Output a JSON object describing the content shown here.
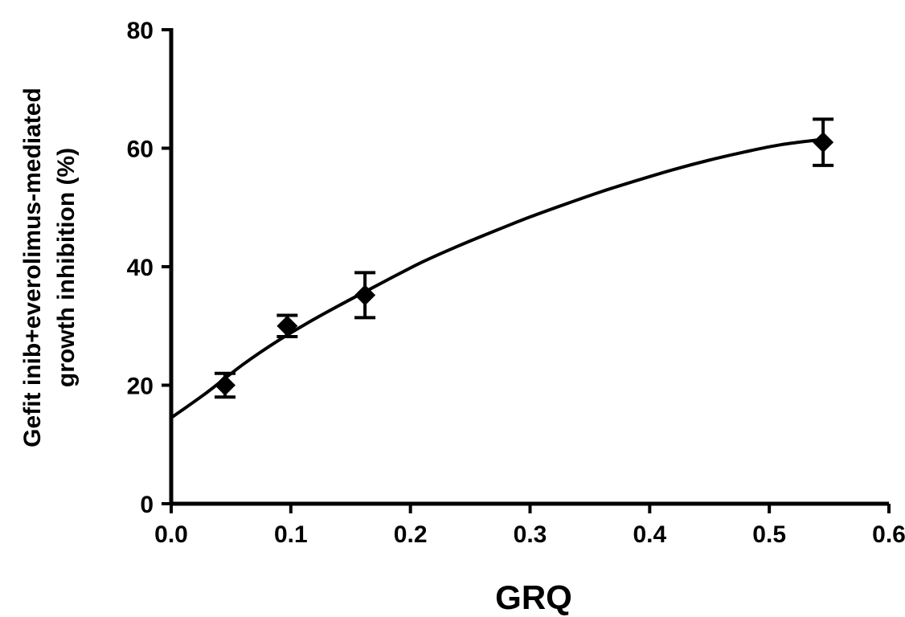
{
  "chart_data": {
    "type": "scatter",
    "title": "",
    "xlabel": "GRQ",
    "ylabel_line1": "Gefit inib+everolimus-mediated",
    "ylabel_line2": "growth inhibition  (%)",
    "xlim": [
      0.0,
      0.6
    ],
    "ylim": [
      0,
      80
    ],
    "x_ticks": [
      "0.0",
      "0.1",
      "0.2",
      "0.3",
      "0.4",
      "0.5",
      "0.6"
    ],
    "y_ticks": [
      "0",
      "20",
      "40",
      "60",
      "80"
    ],
    "grid": false,
    "points": [
      {
        "x": 0.045,
        "y": 20.0,
        "err": 2.0
      },
      {
        "x": 0.097,
        "y": 30.0,
        "err": 1.8
      },
      {
        "x": 0.162,
        "y": 35.2,
        "err": 3.8
      },
      {
        "x": 0.545,
        "y": 61.0,
        "err": 3.9
      }
    ],
    "fit_curve": {
      "x": [
        0.0,
        0.03,
        0.06,
        0.09,
        0.12,
        0.15,
        0.18,
        0.21,
        0.24,
        0.27,
        0.3,
        0.33,
        0.36,
        0.39,
        0.42,
        0.45,
        0.48,
        0.51,
        0.545
      ],
      "y": [
        14.5,
        18.8,
        23.5,
        27.6,
        31.2,
        34.5,
        37.7,
        40.8,
        43.5,
        46.0,
        48.4,
        50.6,
        52.7,
        54.6,
        56.4,
        58.0,
        59.4,
        60.6,
        61.5
      ]
    }
  }
}
